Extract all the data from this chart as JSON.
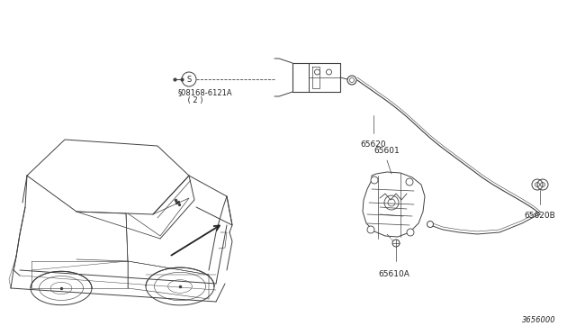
{
  "bg_color": "#ffffff",
  "line_color": "#404040",
  "text_color": "#222222",
  "labels": {
    "part1_line1": "§08168-6121A",
    "part1_line2": "    ( 2 )",
    "part2": "65620",
    "part3": "65601",
    "part4": "65610A",
    "part5": "65620B",
    "part6": "3656000"
  },
  "figsize": [
    6.4,
    3.72
  ],
  "dpi": 100,
  "font_size": 6.5
}
